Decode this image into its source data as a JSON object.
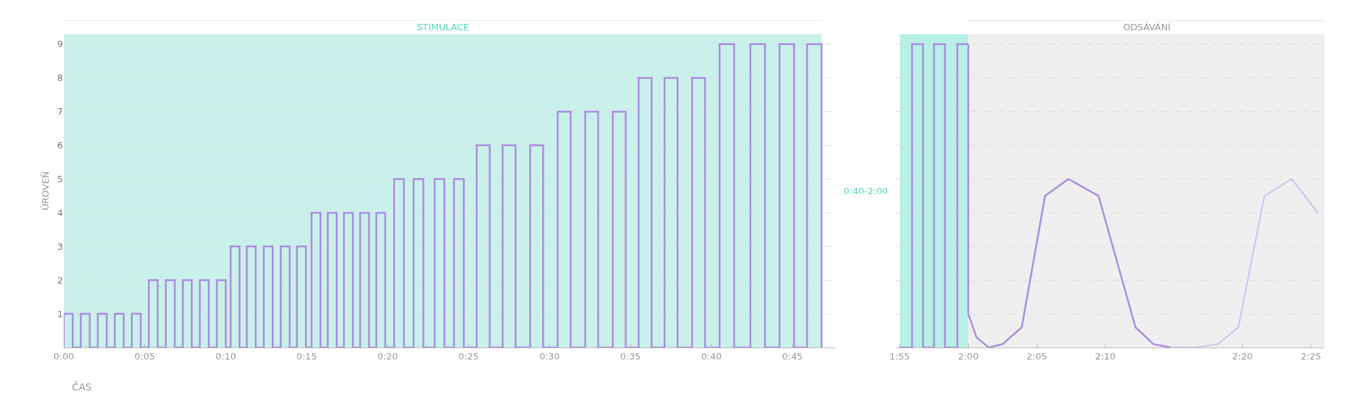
{
  "chart_data": [
    {
      "type": "line",
      "xlabel": "ČAS",
      "ylabel": "ÚROVEŇ",
      "grid": "y",
      "marker": "none",
      "line_style": "solid",
      "xlim": [
        0,
        47.7
      ],
      "xticks": [
        {
          "value": 0,
          "label": "0:00"
        },
        {
          "value": 5,
          "label": "0:05"
        },
        {
          "value": 10,
          "label": "0:10"
        },
        {
          "value": 15,
          "label": "0:15"
        },
        {
          "value": 20,
          "label": "0:20"
        },
        {
          "value": 25,
          "label": "0:25"
        },
        {
          "value": 30,
          "label": "0:30"
        },
        {
          "value": 35,
          "label": "0:35"
        },
        {
          "value": 40,
          "label": "0:40"
        },
        {
          "value": 45,
          "label": "0:45"
        }
      ],
      "ylim": [
        0,
        9.3
      ],
      "yticks": [
        1,
        2,
        3,
        4,
        5,
        6,
        7,
        8,
        9
      ],
      "bands": [
        {
          "axis": "x",
          "from": 0,
          "to": 46.8,
          "color": "#c9f0ea",
          "label": "STIMULACE"
        }
      ],
      "annotations": [
        "0:40-2:00"
      ],
      "series": [
        {
          "color": "#a98be0",
          "x": [
            0,
            0,
            0.55,
            0.55,
            1.05,
            1.05,
            1.6,
            1.6,
            2.1,
            2.1,
            2.65,
            2.65,
            3.15,
            3.15,
            3.7,
            3.7,
            4.2,
            4.2,
            4.75,
            4.75,
            5.25,
            5.25,
            5.8,
            5.8,
            6.3,
            6.3,
            6.85,
            6.85,
            7.35,
            7.35,
            7.9,
            7.9,
            8.4,
            8.4,
            8.95,
            8.95,
            9.45,
            9.45,
            10.0,
            10.0,
            10.3,
            10.3,
            10.85,
            10.85,
            11.3,
            11.3,
            11.85,
            11.85,
            12.35,
            12.35,
            12.9,
            12.9,
            13.4,
            13.4,
            13.95,
            13.95,
            14.4,
            14.4,
            14.95,
            14.95,
            15.3,
            15.3,
            15.85,
            15.85,
            16.3,
            16.3,
            16.85,
            16.85,
            17.3,
            17.3,
            17.85,
            17.85,
            18.3,
            18.3,
            18.85,
            18.85,
            19.3,
            19.3,
            19.85,
            19.85,
            20.4,
            20.4,
            21.0,
            21.0,
            21.6,
            21.6,
            22.2,
            22.2,
            22.9,
            22.9,
            23.5,
            23.5,
            24.1,
            24.1,
            24.7,
            24.7,
            25.5,
            25.5,
            26.3,
            26.3,
            27.1,
            27.1,
            27.9,
            27.9,
            28.8,
            28.8,
            29.6,
            29.6,
            30.5,
            30.5,
            31.3,
            31.3,
            32.2,
            32.2,
            33.0,
            33.0,
            33.9,
            33.9,
            34.7,
            34.7,
            35.5,
            35.5,
            36.3,
            36.3,
            37.1,
            37.1,
            37.9,
            37.9,
            38.8,
            38.8,
            39.6,
            39.6,
            40.5,
            40.5,
            41.4,
            41.4,
            42.4,
            42.4,
            43.3,
            43.3,
            44.2,
            44.2,
            45.1,
            45.1,
            45.9,
            45.9,
            46.8,
            46.8
          ],
          "values": [
            0,
            1,
            1,
            0,
            0,
            1,
            1,
            0,
            0,
            1,
            1,
            0,
            0,
            1,
            1,
            0,
            0,
            1,
            1,
            0,
            0,
            2,
            2,
            0,
            0,
            2,
            2,
            0,
            0,
            2,
            2,
            0,
            0,
            2,
            2,
            0,
            0,
            2,
            2,
            0,
            0,
            3,
            3,
            0,
            0,
            3,
            3,
            0,
            0,
            3,
            3,
            0,
            0,
            3,
            3,
            0,
            0,
            3,
            3,
            0,
            0,
            4,
            4,
            0,
            0,
            4,
            4,
            0,
            0,
            4,
            4,
            0,
            0,
            4,
            4,
            0,
            0,
            4,
            4,
            0,
            0,
            5,
            5,
            0,
            0,
            5,
            5,
            0,
            0,
            5,
            5,
            0,
            0,
            5,
            5,
            0,
            0,
            6,
            6,
            0,
            0,
            6,
            6,
            0,
            0,
            6,
            6,
            0,
            0,
            7,
            7,
            0,
            0,
            7,
            7,
            0,
            0,
            7,
            7,
            0,
            0,
            8,
            8,
            0,
            0,
            8,
            8,
            0,
            0,
            8,
            8,
            0,
            0,
            9,
            9,
            0,
            0,
            9,
            9,
            0,
            0,
            9,
            9,
            0,
            0,
            9,
            9,
            0
          ]
        }
      ]
    },
    {
      "type": "line",
      "grid": "y",
      "marker": "none",
      "line_style": "solid",
      "tick_labels": "x",
      "xlim": [
        114.7,
        146
      ],
      "xticks": [
        {
          "value": 115,
          "label": "1:55"
        },
        {
          "value": 120,
          "label": "2:00"
        },
        {
          "value": 125,
          "label": "2:05"
        },
        {
          "value": 130,
          "label": "2:10"
        },
        {
          "value": 140,
          "label": "2:20"
        },
        {
          "value": 145,
          "label": "2:25"
        }
      ],
      "ylim": [
        0,
        9.3
      ],
      "yticks": [
        1,
        2,
        3,
        4,
        5,
        6,
        7,
        8,
        9
      ],
      "bands": [
        {
          "axis": "x",
          "from": 115,
          "to": 120,
          "color": "#b8efe6"
        },
        {
          "axis": "x",
          "from": 120,
          "to": 146,
          "color": "#efefef",
          "label": "ODSÁVÁNÍ"
        }
      ],
      "series": [
        {
          "color": "#a98be0",
          "x": [
            115.0,
            115.9,
            115.9,
            116.7,
            116.7,
            117.5,
            117.5,
            118.3,
            118.3,
            119.2,
            119.2,
            120.0
          ],
          "values": [
            0,
            0,
            9,
            9,
            0,
            0,
            9,
            9,
            0,
            0,
            9,
            9
          ]
        },
        {
          "color": "#a98be0",
          "x": [
            120,
            120,
            120.6,
            121.5,
            122.5,
            123.9,
            125.6,
            127.3,
            129.5,
            132.2,
            133.5,
            134.8
          ],
          "values": [
            9,
            1,
            0.3,
            0,
            0.1,
            0.6,
            4.5,
            5,
            4.5,
            0.6,
            0.1,
            0
          ]
        },
        {
          "color": "#d5c9f0",
          "x": [
            134.8,
            136.5,
            138.2,
            139.7,
            141.6,
            143.6,
            145.5
          ],
          "values": [
            0,
            0,
            0.1,
            0.6,
            4.5,
            5,
            4
          ]
        }
      ]
    }
  ]
}
